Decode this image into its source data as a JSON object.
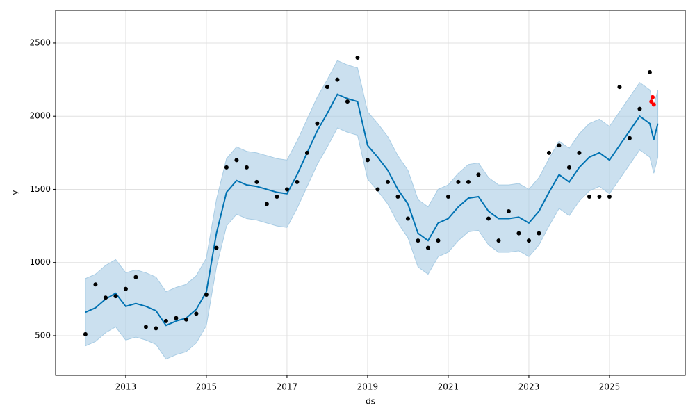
{
  "chart_data": {
    "type": "line",
    "xlabel": "ds",
    "ylabel": "y",
    "xlim": [
      2011.26,
      2026.88
    ],
    "ylim": [
      229,
      2723
    ],
    "xticks": [
      2013,
      2015,
      2017,
      2019,
      2021,
      2023,
      2025
    ],
    "yticks": [
      500,
      1000,
      1500,
      2000,
      2500
    ],
    "grid": true,
    "forecast": {
      "color": "#0072b2",
      "band_color": "#a8cce4",
      "x": [
        2012,
        2012.25,
        2012.5,
        2012.75,
        2013,
        2013.25,
        2013.5,
        2013.75,
        2014,
        2014.25,
        2014.5,
        2014.75,
        2015,
        2015.25,
        2015.5,
        2015.75,
        2016,
        2016.25,
        2016.5,
        2016.75,
        2017,
        2017.25,
        2017.5,
        2017.75,
        2018,
        2018.25,
        2018.5,
        2018.75,
        2019,
        2019.25,
        2019.5,
        2019.75,
        2020,
        2020.25,
        2020.5,
        2020.75,
        2021,
        2021.25,
        2021.5,
        2021.75,
        2022,
        2022.25,
        2022.5,
        2022.75,
        2023,
        2023.25,
        2023.5,
        2023.75,
        2024,
        2024.25,
        2024.5,
        2024.75,
        2025,
        2025.25,
        2025.5,
        2025.75,
        2026,
        2026.1,
        2026.2
      ],
      "yhat": [
        660,
        690,
        750,
        790,
        700,
        720,
        700,
        670,
        570,
        600,
        620,
        680,
        800,
        1200,
        1480,
        1560,
        1530,
        1520,
        1500,
        1480,
        1470,
        1600,
        1750,
        1900,
        2020,
        2150,
        2120,
        2100,
        1800,
        1720,
        1630,
        1500,
        1400,
        1200,
        1150,
        1270,
        1300,
        1380,
        1440,
        1450,
        1350,
        1300,
        1300,
        1310,
        1270,
        1350,
        1480,
        1600,
        1550,
        1650,
        1720,
        1750,
        1700,
        1800,
        1900,
        2000,
        1950,
        1840,
        1950
      ],
      "lower": [
        430,
        460,
        520,
        560,
        470,
        490,
        470,
        440,
        340,
        370,
        390,
        450,
        570,
        970,
        1250,
        1330,
        1300,
        1290,
        1270,
        1250,
        1240,
        1370,
        1520,
        1670,
        1790,
        1920,
        1890,
        1870,
        1570,
        1490,
        1400,
        1270,
        1170,
        970,
        920,
        1040,
        1070,
        1150,
        1210,
        1220,
        1120,
        1070,
        1070,
        1080,
        1040,
        1120,
        1250,
        1370,
        1320,
        1420,
        1490,
        1520,
        1470,
        1570,
        1670,
        1770,
        1720,
        1610,
        1720
      ],
      "upper": [
        890,
        920,
        980,
        1020,
        930,
        950,
        930,
        900,
        800,
        830,
        850,
        910,
        1030,
        1430,
        1710,
        1790,
        1760,
        1750,
        1730,
        1710,
        1700,
        1830,
        1980,
        2130,
        2250,
        2380,
        2350,
        2330,
        2030,
        1950,
        1860,
        1730,
        1630,
        1430,
        1380,
        1500,
        1530,
        1610,
        1670,
        1680,
        1580,
        1530,
        1530,
        1540,
        1500,
        1580,
        1710,
        1830,
        1780,
        1880,
        1950,
        1980,
        1930,
        2030,
        2130,
        2230,
        2180,
        2070,
        2180
      ]
    },
    "observed": {
      "color": "#000000",
      "x": [
        2012,
        2012.25,
        2012.5,
        2012.75,
        2013,
        2013.25,
        2013.5,
        2013.75,
        2014,
        2014.25,
        2014.5,
        2014.75,
        2015,
        2015.25,
        2015.5,
        2015.75,
        2016,
        2016.25,
        2016.5,
        2016.75,
        2017,
        2017.25,
        2017.5,
        2017.75,
        2018,
        2018.25,
        2018.5,
        2018.75,
        2019,
        2019.25,
        2019.5,
        2019.75,
        2020,
        2020.25,
        2020.5,
        2020.75,
        2021,
        2021.25,
        2021.5,
        2021.75,
        2022,
        2022.25,
        2022.5,
        2022.75,
        2023,
        2023.25,
        2023.5,
        2023.75,
        2024,
        2024.25,
        2024.5,
        2024.75,
        2025,
        2025.25,
        2025.5,
        2025.75,
        2026
      ],
      "values": [
        510,
        850,
        760,
        770,
        820,
        900,
        560,
        550,
        600,
        620,
        610,
        650,
        780,
        1100,
        1650,
        1700,
        1650,
        1550,
        1400,
        1450,
        1500,
        1550,
        1750,
        1950,
        2200,
        2250,
        2100,
        2400,
        1700,
        1500,
        1550,
        1450,
        1300,
        1150,
        1100,
        1150,
        1450,
        1550,
        1550,
        1600,
        1300,
        1150,
        1350,
        1200,
        1150,
        1200,
        1750,
        1800,
        1650,
        1750,
        1450,
        1450,
        1450,
        2200,
        1850,
        2050,
        2300
      ]
    },
    "future": {
      "color": "#ff0000",
      "x": [
        2026.04,
        2026.07,
        2026.1
      ],
      "values": [
        2100,
        2130,
        2080
      ]
    }
  }
}
